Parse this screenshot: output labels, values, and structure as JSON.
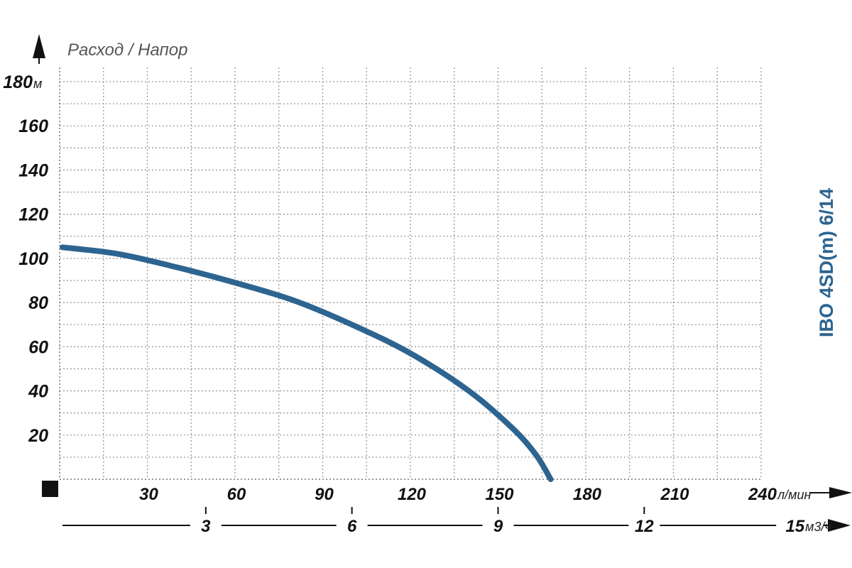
{
  "chart_data": {
    "type": "line",
    "title": "Расход / Напор",
    "series_label": "IBO 4SD(m) 6/14",
    "y_axis": {
      "unit": "м",
      "range": [
        0,
        180
      ],
      "ticks": [
        "20",
        "40",
        "60",
        "80",
        "100",
        "120",
        "140",
        "160",
        "180"
      ],
      "top_label": "180"
    },
    "x_axis_primary": {
      "unit": "л/мин",
      "range": [
        0,
        240
      ],
      "ticks": [
        "30",
        "60",
        "90",
        "120",
        "150",
        "180",
        "210",
        "240"
      ],
      "last_label": "240"
    },
    "x_axis_secondary": {
      "unit": "м3/ч",
      "ticks": [
        "3",
        "6",
        "9",
        "12",
        "15"
      ],
      "last_label": "15"
    },
    "grid": true,
    "series": [
      {
        "name": "IBO 4SD(m) 6/14",
        "color": "#2d6490",
        "x": [
          0,
          20,
          40,
          60,
          80,
          100,
          120,
          140,
          155,
          163,
          168
        ],
        "y": [
          105,
          102,
          96,
          89,
          81,
          70,
          57,
          40,
          23,
          11,
          0
        ]
      }
    ]
  }
}
